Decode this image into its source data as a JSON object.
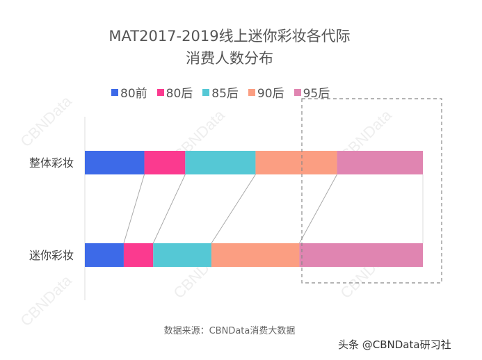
{
  "chart_data": {
    "type": "bar",
    "orientation": "horizontal",
    "stacked": true,
    "title": "MAT2017-2019线上迷你彩妆各代际\n消费人数分布",
    "title_lines": [
      "MAT2017-2019线上迷你彩妆各代际",
      "消费人数分布"
    ],
    "categories": [
      "整体彩妆",
      "迷你彩妆"
    ],
    "unit": "share (%)",
    "xlim": [
      0,
      100
    ],
    "grid": false,
    "legend": "top",
    "series": [
      {
        "name": "80前",
        "color": "#3d6ae8",
        "values": [
          17.6,
          11.5
        ]
      },
      {
        "name": "80后",
        "color": "#fb3a8f",
        "values": [
          12.1,
          8.7
        ]
      },
      {
        "name": "85后",
        "color": "#55c8d5",
        "values": [
          20.8,
          17.2
        ]
      },
      {
        "name": "90后",
        "color": "#fb9e82",
        "values": [
          24.1,
          26.0
        ]
      },
      {
        "name": "95后",
        "color": "#e085b1",
        "values": [
          25.4,
          36.5
        ]
      }
    ],
    "source": "数据来源：CBNData消费大数据"
  },
  "watermark": "CBNData",
  "credit": "头条 @CBNData研习社"
}
